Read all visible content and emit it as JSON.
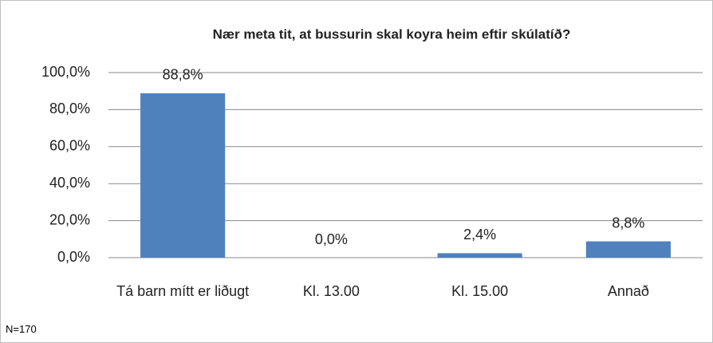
{
  "chart_data": {
    "type": "bar",
    "title": "Nær meta tit, at bussurin skal koyra heim eftir skúlatíð?",
    "categories": [
      "Tá barn mítt er liðugt",
      "Kl. 13.00",
      "Kl. 15.00",
      "Annað"
    ],
    "values": [
      88.8,
      0,
      2.4,
      8.8
    ],
    "value_labels": [
      "88,8%",
      "0,0%",
      "2,4%",
      "8,8%"
    ],
    "color": "#4f81bd",
    "ylim": [
      0,
      100
    ],
    "yticks": [
      {
        "value": 0,
        "label": "0,0%"
      },
      {
        "value": 20,
        "label": "20,0%"
      },
      {
        "value": 40,
        "label": "40,0%"
      },
      {
        "value": 60,
        "label": "60,0%"
      },
      {
        "value": 80,
        "label": "80,0%"
      },
      {
        "value": 100,
        "label": "100,0%"
      }
    ],
    "grid": true,
    "annotation": "N=170"
  }
}
